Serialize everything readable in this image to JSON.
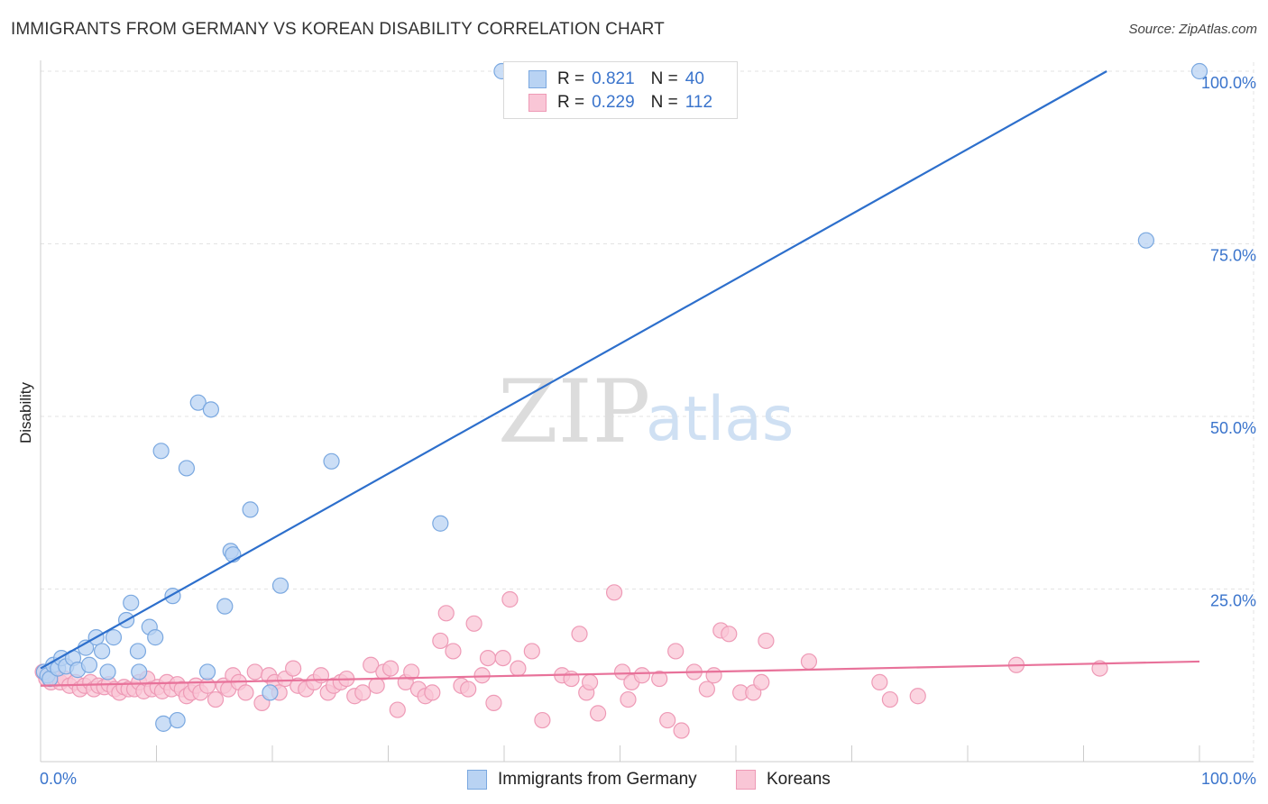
{
  "title": "IMMIGRANTS FROM GERMANY VS KOREAN DISABILITY CORRELATION CHART",
  "source": "Source: ZipAtlas.com",
  "watermark": {
    "zip": "ZIP",
    "atlas": "atlas"
  },
  "legend": {
    "r_label": "R =",
    "n_label": "N =",
    "series": [
      {
        "r": "0.821",
        "n": "40"
      },
      {
        "r": "0.229",
        "n": "112"
      }
    ]
  },
  "colors": {
    "blue_fill": "#b9d3f3",
    "blue_stroke": "#7aa8e0",
    "blue_line": "#2d6fcc",
    "pink_fill": "#f9c6d6",
    "pink_stroke": "#ee9ab6",
    "pink_line": "#e8729a",
    "tick_text": "#3a74cc"
  },
  "chart_data": {
    "type": "scatter",
    "title": "IMMIGRANTS FROM GERMANY VS KOREAN DISABILITY CORRELATION CHART",
    "xlabel": "",
    "ylabel": "Disability",
    "xlim": [
      0,
      100
    ],
    "ylim": [
      0,
      100
    ],
    "x_tick_labels": [
      "0.0%",
      "100.0%"
    ],
    "y_ticks": [
      25,
      50,
      75,
      100
    ],
    "y_tick_labels": [
      "25.0%",
      "50.0%",
      "75.0%",
      "100.0%"
    ],
    "grid": true,
    "series": [
      {
        "name": "Immigrants from Germany",
        "color": "blue",
        "trend": {
          "x0": 0,
          "y0": 13.5,
          "x1": 92,
          "y1": 100
        },
        "points": [
          [
            0.3,
            13
          ],
          [
            0.6,
            12.5
          ],
          [
            0.8,
            12
          ],
          [
            1.1,
            14
          ],
          [
            1.5,
            13.5
          ],
          [
            1.8,
            15
          ],
          [
            2.2,
            13.8
          ],
          [
            2.8,
            15
          ],
          [
            3.2,
            13.3
          ],
          [
            3.9,
            16.5
          ],
          [
            4.2,
            14
          ],
          [
            4.8,
            18
          ],
          [
            5.3,
            16
          ],
          [
            5.8,
            13
          ],
          [
            6.3,
            18
          ],
          [
            7.4,
            20.5
          ],
          [
            7.8,
            23
          ],
          [
            8.4,
            16
          ],
          [
            8.5,
            13
          ],
          [
            9.4,
            19.5
          ],
          [
            9.9,
            18
          ],
          [
            10.4,
            45
          ],
          [
            10.6,
            5.5
          ],
          [
            11.4,
            24
          ],
          [
            11.8,
            6
          ],
          [
            12.6,
            42.5
          ],
          [
            13.6,
            52
          ],
          [
            14.4,
            13
          ],
          [
            14.7,
            51
          ],
          [
            15.9,
            22.5
          ],
          [
            16.4,
            30.5
          ],
          [
            16.6,
            30
          ],
          [
            18.1,
            36.5
          ],
          [
            19.8,
            10
          ],
          [
            20.7,
            25.5
          ],
          [
            25.1,
            43.5
          ],
          [
            34.5,
            34.5
          ],
          [
            39.8,
            100
          ],
          [
            95.4,
            75.5
          ],
          [
            100,
            100
          ]
        ]
      },
      {
        "name": "Koreans",
        "color": "pink",
        "trend": {
          "x0": 0,
          "y0": 11,
          "x1": 100,
          "y1": 14.5
        },
        "points": [
          [
            0.2,
            13
          ],
          [
            0.5,
            12
          ],
          [
            0.9,
            11.5
          ],
          [
            1.3,
            12
          ],
          [
            1.7,
            11.5
          ],
          [
            2.1,
            12
          ],
          [
            2.5,
            11
          ],
          [
            3.0,
            11.5
          ],
          [
            3.4,
            10.5
          ],
          [
            3.8,
            11
          ],
          [
            4.3,
            11.5
          ],
          [
            4.6,
            10.5
          ],
          [
            5.0,
            11
          ],
          [
            5.5,
            10.8
          ],
          [
            5.9,
            11.2
          ],
          [
            6.4,
            10.5
          ],
          [
            6.8,
            10
          ],
          [
            7.2,
            10.8
          ],
          [
            7.6,
            10.5
          ],
          [
            8.1,
            10.5
          ],
          [
            8.5,
            11.5
          ],
          [
            8.9,
            10.2
          ],
          [
            9.2,
            12
          ],
          [
            9.6,
            10.5
          ],
          [
            10.1,
            10.8
          ],
          [
            10.5,
            10.2
          ],
          [
            10.9,
            11.5
          ],
          [
            11.3,
            10.5
          ],
          [
            11.8,
            11.2
          ],
          [
            12.2,
            10.5
          ],
          [
            12.6,
            9.5
          ],
          [
            13.0,
            10
          ],
          [
            13.4,
            11
          ],
          [
            13.8,
            10
          ],
          [
            14.4,
            11
          ],
          [
            15.1,
            9
          ],
          [
            15.8,
            11
          ],
          [
            16.2,
            10.5
          ],
          [
            16.6,
            12.5
          ],
          [
            17.1,
            11.5
          ],
          [
            17.7,
            10
          ],
          [
            18.5,
            13
          ],
          [
            19.1,
            8.5
          ],
          [
            19.7,
            12.5
          ],
          [
            20.2,
            11.5
          ],
          [
            20.6,
            10
          ],
          [
            21.1,
            12
          ],
          [
            21.8,
            13.5
          ],
          [
            22.2,
            11
          ],
          [
            22.9,
            10.5
          ],
          [
            23.6,
            11.5
          ],
          [
            24.2,
            12.5
          ],
          [
            24.8,
            10
          ],
          [
            25.3,
            11
          ],
          [
            25.9,
            11.5
          ],
          [
            26.4,
            12
          ],
          [
            27.1,
            9.5
          ],
          [
            27.8,
            10
          ],
          [
            28.5,
            14
          ],
          [
            29.0,
            11
          ],
          [
            29.6,
            13
          ],
          [
            30.2,
            13.5
          ],
          [
            30.8,
            7.5
          ],
          [
            31.5,
            11.5
          ],
          [
            32.0,
            13
          ],
          [
            32.6,
            10.5
          ],
          [
            33.2,
            9.5
          ],
          [
            33.8,
            10
          ],
          [
            34.5,
            17.5
          ],
          [
            35.0,
            21.5
          ],
          [
            35.6,
            16
          ],
          [
            36.3,
            11
          ],
          [
            36.9,
            10.5
          ],
          [
            37.4,
            20
          ],
          [
            38.1,
            12.5
          ],
          [
            38.6,
            15
          ],
          [
            39.1,
            8.5
          ],
          [
            39.9,
            15
          ],
          [
            40.5,
            23.5
          ],
          [
            41.2,
            13.5
          ],
          [
            42.4,
            16
          ],
          [
            43.3,
            6
          ],
          [
            45.0,
            12.5
          ],
          [
            45.8,
            12
          ],
          [
            46.5,
            18.5
          ],
          [
            47.1,
            10
          ],
          [
            47.4,
            11.5
          ],
          [
            48.1,
            7
          ],
          [
            49.5,
            24.5
          ],
          [
            50.2,
            13
          ],
          [
            50.7,
            9
          ],
          [
            51.0,
            11.5
          ],
          [
            51.9,
            12.5
          ],
          [
            53.4,
            12
          ],
          [
            54.1,
            6
          ],
          [
            54.8,
            16
          ],
          [
            55.3,
            4.5
          ],
          [
            56.4,
            13
          ],
          [
            57.5,
            10.5
          ],
          [
            58.1,
            12.5
          ],
          [
            58.7,
            19
          ],
          [
            59.4,
            18.5
          ],
          [
            60.4,
            10
          ],
          [
            61.5,
            10
          ],
          [
            62.2,
            11.5
          ],
          [
            62.6,
            17.5
          ],
          [
            66.3,
            14.5
          ],
          [
            72.4,
            11.5
          ],
          [
            73.3,
            9
          ],
          [
            75.7,
            9.5
          ],
          [
            84.2,
            14
          ],
          [
            91.4,
            13.5
          ]
        ]
      }
    ]
  },
  "bottom_legend": [
    {
      "label": "Immigrants from Germany"
    },
    {
      "label": "Koreans"
    }
  ]
}
